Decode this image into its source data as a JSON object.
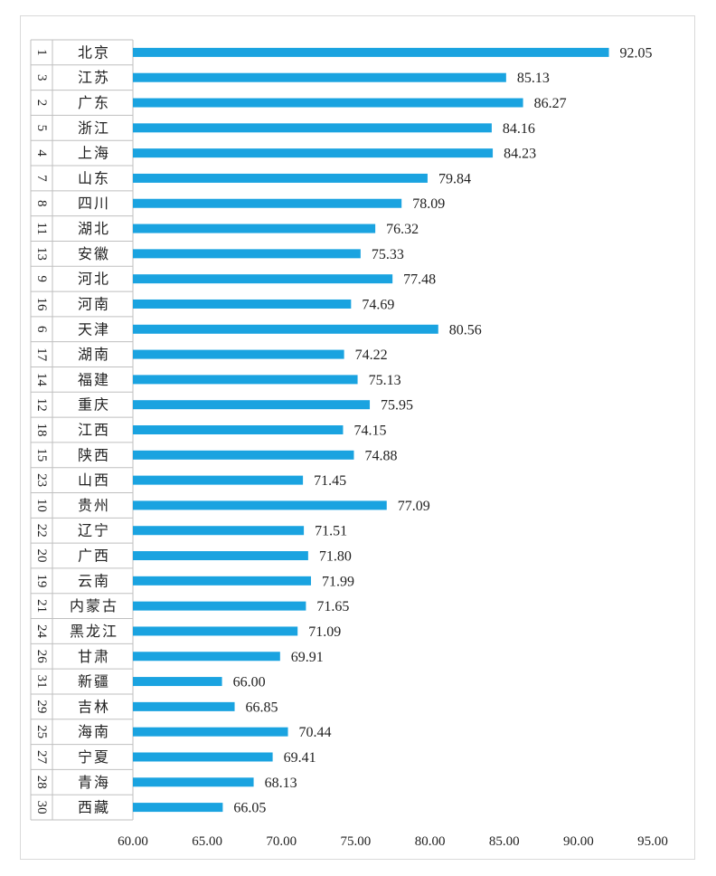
{
  "chart_data": {
    "type": "bar",
    "orientation": "horizontal",
    "categories": [
      "北京",
      "江苏",
      "广东",
      "浙江",
      "上海",
      "山东",
      "四川",
      "湖北",
      "安徽",
      "河北",
      "河南",
      "天津",
      "湖南",
      "福建",
      "重庆",
      "江西",
      "陕西",
      "山西",
      "贵州",
      "辽宁",
      "广西",
      "云南",
      "内蒙古",
      "黑龙江",
      "甘肃",
      "新疆",
      "吉林",
      "海南",
      "宁夏",
      "青海",
      "西藏"
    ],
    "ranks": [
      "1",
      "3",
      "2",
      "5",
      "4",
      "7",
      "8",
      "11",
      "13",
      "9",
      "16",
      "6",
      "17",
      "14",
      "12",
      "18",
      "15",
      "23",
      "10",
      "22",
      "20",
      "19",
      "21",
      "24",
      "26",
      "31",
      "29",
      "25",
      "27",
      "28",
      "30"
    ],
    "values": [
      92.05,
      85.13,
      86.27,
      84.16,
      84.23,
      79.84,
      78.09,
      76.32,
      75.33,
      77.48,
      74.69,
      80.56,
      74.22,
      75.13,
      75.95,
      74.15,
      74.88,
      71.45,
      77.09,
      71.51,
      71.8,
      71.99,
      71.65,
      71.09,
      69.91,
      66.0,
      66.85,
      70.44,
      69.41,
      68.13,
      66.05
    ],
    "value_labels": [
      "92.05",
      "85.13",
      "86.27",
      "84.16",
      "84.23",
      "79.84",
      "78.09",
      "76.32",
      "75.33",
      "77.48",
      "74.69",
      "80.56",
      "74.22",
      "75.13",
      "75.95",
      "74.15",
      "74.88",
      "71.45",
      "77.09",
      "71.51",
      "71.80",
      "71.99",
      "71.65",
      "71.09",
      "69.91",
      "66.00",
      "66.85",
      "70.44",
      "69.41",
      "68.13",
      "66.05"
    ],
    "xlim": [
      60,
      95
    ],
    "x_ticks": [
      "60.00",
      "65.00",
      "70.00",
      "75.00",
      "80.00",
      "85.00",
      "90.00",
      "95.00"
    ],
    "x_tick_values": [
      60,
      65,
      70,
      75,
      80,
      85,
      90,
      95
    ],
    "bar_color": "#1aa3e0",
    "grid": false,
    "legend": "none",
    "title": "",
    "xlabel": "",
    "ylabel": ""
  }
}
